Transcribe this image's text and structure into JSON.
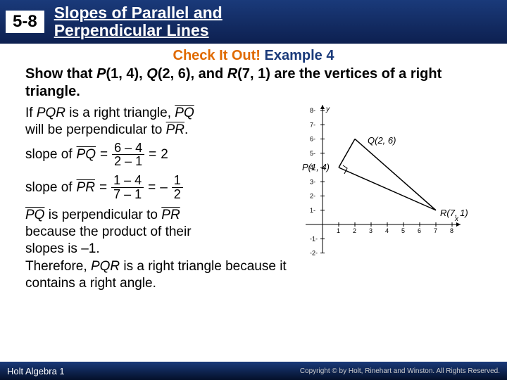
{
  "header": {
    "lesson_number": "5-8",
    "title_l1": "Slopes of Parallel and",
    "title_l2": "Perpendicular Lines"
  },
  "check_label": "Check It Out!",
  "example_label": "Example 4",
  "prompt_html": "Show that P(1, 4), Q(2, 6), and R(7, 1) are the vertices of a right triangle.",
  "intro": "If PQR is a right triangle, PQ will be perpendicular to PR.",
  "slope_pq": {
    "label": "slope of",
    "seg": "PQ",
    "num": "6 – 4",
    "den": "2 – 1",
    "result": "2"
  },
  "slope_pr": {
    "label": "slope of",
    "seg": "PR",
    "num": "1 – 4",
    "den": "7 – 1",
    "neg": "–",
    "rnum": "1",
    "rden": "2"
  },
  "perp_text": "PQ is perpendicular to PR because the product of their slopes is –1.",
  "therefore": "Therefore, PQR is a right triangle because it contains a right angle.",
  "footer": {
    "book": "Holt Algebra 1",
    "copyright": "Copyright © by Holt, Rinehart and Winston. All Rights Reserved."
  },
  "graph": {
    "xlim": [
      -1,
      8
    ],
    "ylim": [
      -2,
      8
    ],
    "xticks": [
      1,
      2,
      3,
      4,
      5,
      6,
      7,
      8
    ],
    "yticks": [
      -2,
      -1,
      1,
      2,
      3,
      4,
      5,
      6,
      7,
      8
    ],
    "axis_color": "#000",
    "tick_color": "#000",
    "line_color": "#000",
    "points": {
      "P": {
        "x": 1,
        "y": 4,
        "label": "P(1, 4)"
      },
      "Q": {
        "x": 2,
        "y": 6,
        "label": "Q(2, 6)"
      },
      "R": {
        "x": 7,
        "y": 1,
        "label": "R(7, 1)"
      }
    }
  }
}
